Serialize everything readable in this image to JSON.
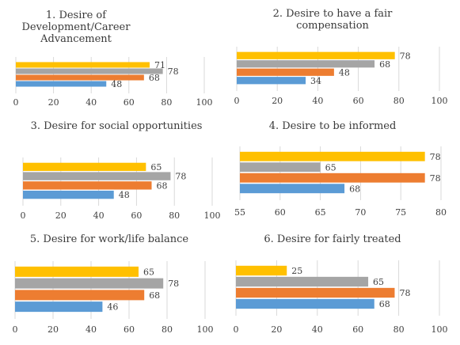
{
  "colors": {
    "yellow": "#FFC000",
    "gray": "#A5A5A5",
    "orange": "#ED7D31",
    "blue": "#5B9BD5"
  },
  "chart_data": [
    {
      "type": "bar",
      "orientation": "horizontal",
      "title": [
        "1. Desire of",
        "Development/Career",
        "Advancement"
      ],
      "values": [
        71,
        78,
        68,
        48
      ],
      "xlim": [
        0,
        100
      ],
      "xticks": [
        "0",
        "20",
        "40",
        "60",
        "80",
        "100"
      ],
      "xtick_values": [
        0,
        20,
        40,
        60,
        80,
        100
      ]
    },
    {
      "type": "bar",
      "orientation": "horizontal",
      "title": [
        "2. Desire to have a fair",
        "compensation"
      ],
      "values": [
        78,
        68,
        48,
        34
      ],
      "xlim": [
        0,
        100
      ],
      "xticks": [
        "0",
        "20",
        "40",
        "60",
        "80",
        "100"
      ],
      "xtick_values": [
        0,
        20,
        40,
        60,
        80,
        100
      ]
    },
    {
      "type": "bar",
      "orientation": "horizontal",
      "title": [
        "3. Desire for social opportunities"
      ],
      "values": [
        65,
        78,
        68,
        48
      ],
      "xlim": [
        0,
        100
      ],
      "xticks": [
        "0",
        "20",
        "40",
        "60",
        "80",
        "100"
      ],
      "xtick_values": [
        0,
        20,
        40,
        60,
        80,
        100
      ]
    },
    {
      "type": "bar",
      "orientation": "horizontal",
      "title": [
        "4. Desire to be informed"
      ],
      "values": [
        78,
        65,
        78,
        68
      ],
      "xlim": [
        55,
        80
      ],
      "xticks": [
        "55",
        "60",
        "65",
        "70",
        "75",
        "80"
      ],
      "xtick_values": [
        55,
        60,
        65,
        70,
        75,
        80
      ]
    },
    {
      "type": "bar",
      "orientation": "horizontal",
      "title": [
        "5. Desire for work/life balance"
      ],
      "values": [
        65,
        78,
        68,
        46
      ],
      "xlim": [
        0,
        100
      ],
      "xticks": [
        "0",
        "20",
        "40",
        "60",
        "80",
        "100"
      ],
      "xtick_values": [
        0,
        20,
        40,
        60,
        80,
        100
      ]
    },
    {
      "type": "bar",
      "orientation": "horizontal",
      "title": [
        "6. Desire for fairly treated"
      ],
      "values": [
        25,
        65,
        78,
        68
      ],
      "xlim": [
        0,
        100
      ],
      "xticks": [
        "0",
        "20",
        "40",
        "60",
        "80",
        "100"
      ],
      "xtick_values": [
        0,
        20,
        40,
        60,
        80,
        100
      ]
    }
  ]
}
